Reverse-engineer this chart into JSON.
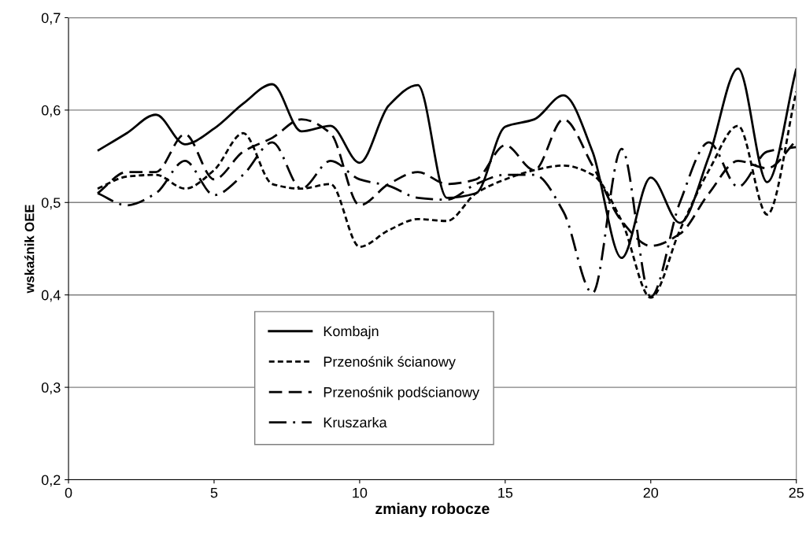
{
  "chart_data": {
    "type": "line",
    "xlabel": "zmiany robocze",
    "ylabel": "wskaźnik OEE",
    "x": [
      1,
      2,
      3,
      4,
      5,
      6,
      7,
      8,
      9,
      10,
      11,
      12,
      13,
      14,
      15,
      16,
      17,
      18,
      19,
      20,
      21,
      22,
      23,
      24,
      25
    ],
    "series": [
      {
        "name": "Kombajn",
        "color": "#000000",
        "line_style": "solid",
        "values": [
          0.556,
          0.575,
          0.595,
          0.563,
          0.58,
          0.607,
          0.628,
          0.577,
          0.583,
          0.543,
          0.605,
          0.627,
          0.505,
          0.51,
          0.582,
          0.59,
          0.616,
          0.555,
          0.44,
          0.527,
          0.478,
          0.55,
          0.645,
          0.522,
          0.645
        ]
      },
      {
        "name": "Przenośnik ścianowy",
        "color": "#000000",
        "line_style": "dotted",
        "values": [
          0.515,
          0.528,
          0.53,
          0.515,
          0.535,
          0.575,
          0.52,
          0.515,
          0.52,
          0.452,
          0.47,
          0.482,
          0.48,
          0.51,
          0.525,
          0.535,
          0.54,
          0.53,
          0.48,
          0.397,
          0.47,
          0.535,
          0.583,
          0.487,
          0.62
        ]
      },
      {
        "name": "Przenośnik podścianowy",
        "color": "#000000",
        "line_style": "dashed",
        "values": [
          0.51,
          0.533,
          0.533,
          0.574,
          0.525,
          0.555,
          0.57,
          0.59,
          0.575,
          0.497,
          0.52,
          0.533,
          0.52,
          0.525,
          0.562,
          0.535,
          0.59,
          0.54,
          0.48,
          0.453,
          0.466,
          0.51,
          0.545,
          0.537,
          0.567
        ]
      },
      {
        "name": "Kruszarka",
        "color": "#000000",
        "line_style": "dashdot",
        "values": [
          0.51,
          0.497,
          0.51,
          0.545,
          0.508,
          0.53,
          0.565,
          0.515,
          0.545,
          0.525,
          0.518,
          0.505,
          0.503,
          0.52,
          0.53,
          0.53,
          0.49,
          0.402,
          0.558,
          0.398,
          0.5,
          0.565,
          0.517,
          0.555,
          0.56
        ]
      }
    ],
    "xlim": [
      0,
      25
    ],
    "xticks": [
      0,
      5,
      10,
      15,
      20,
      25
    ],
    "ylim": [
      0.2,
      0.7
    ],
    "yticks": [
      {
        "value": 0.2,
        "label": "0,2"
      },
      {
        "value": 0.3,
        "label": "0,3"
      },
      {
        "value": 0.4,
        "label": "0,4"
      },
      {
        "value": 0.5,
        "label": "0,5"
      },
      {
        "value": 0.6,
        "label": "0,6"
      },
      {
        "value": 0.7,
        "label": "0,7"
      }
    ],
    "grid": "y",
    "legend": "bottom",
    "marker": "none"
  }
}
